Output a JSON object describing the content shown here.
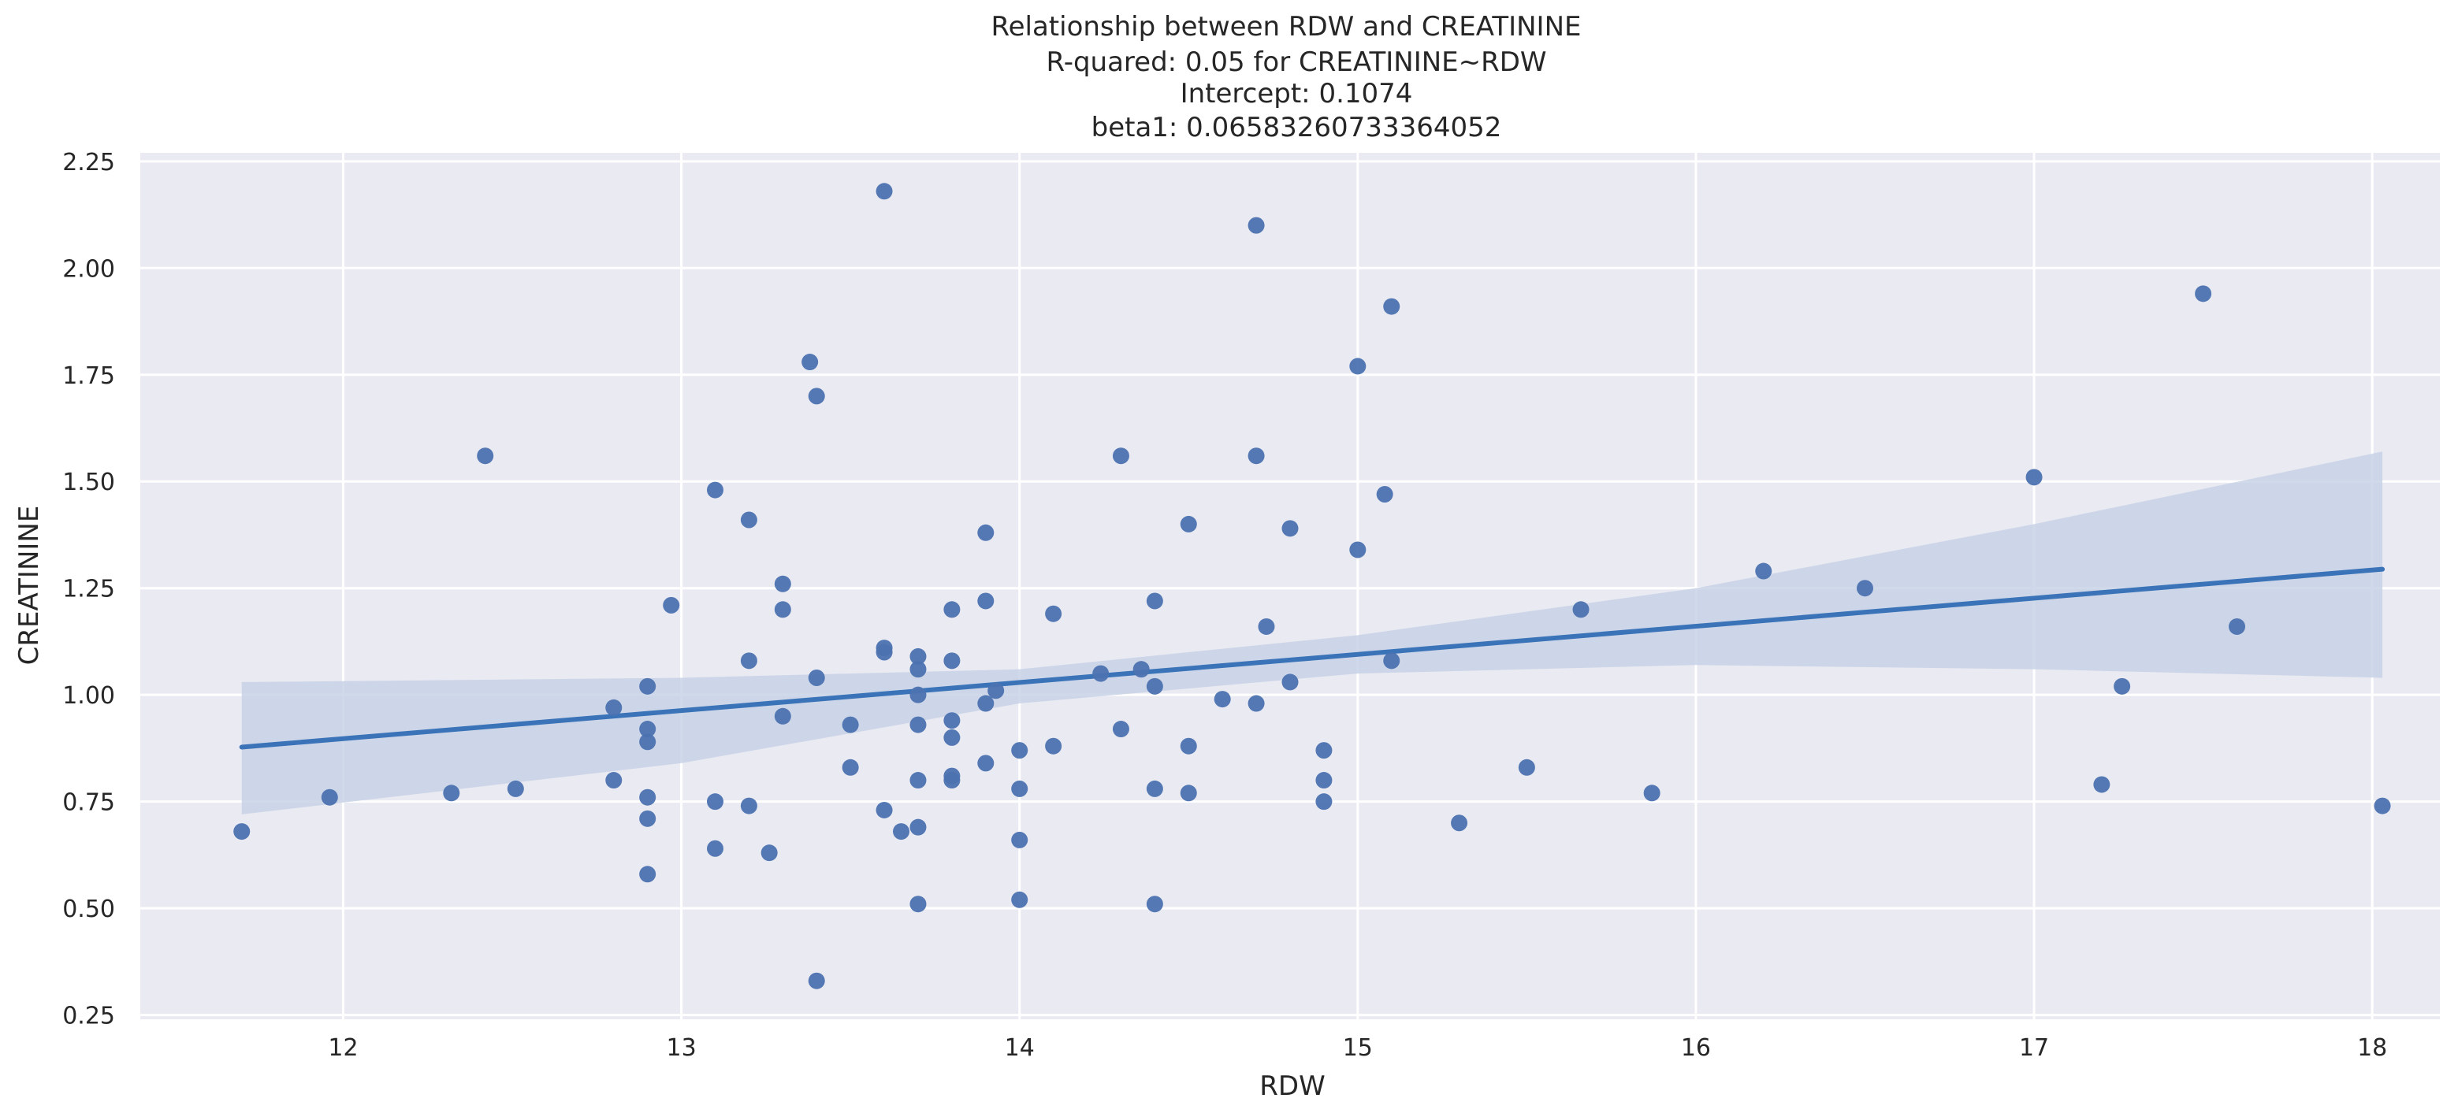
{
  "chart_data": {
    "type": "scatter",
    "title_lines": [
      "Relationship between RDW and CREATININE",
      "R-quared: 0.05 for CREATININE~RDW",
      "Intercept: 0.1074",
      "beta1: 0.06583260733364052"
    ],
    "xlabel": "RDW",
    "ylabel": "CREATININE",
    "xlim": [
      11.4,
      18.2
    ],
    "ylim": [
      0.24,
      2.27
    ],
    "xticks": [
      12,
      13,
      14,
      15,
      16,
      17,
      18
    ],
    "yticks": [
      0.25,
      0.5,
      0.75,
      1.0,
      1.25,
      1.5,
      1.75,
      2.0,
      2.25
    ],
    "grid": true,
    "colors": {
      "background": "#eaeaf2",
      "grid": "#ffffff",
      "point": "#4c72b0",
      "line": "#3a73b8",
      "band": "#c8d2e6"
    },
    "regression": {
      "intercept": 0.1074,
      "slope": 0.06583260733364052,
      "x_range": [
        11.7,
        18.03
      ]
    },
    "confidence_band": {
      "x": [
        11.7,
        13.0,
        14.0,
        15.0,
        16.0,
        17.0,
        18.03
      ],
      "upper": [
        1.03,
        1.04,
        1.06,
        1.14,
        1.25,
        1.4,
        1.57
      ],
      "lower": [
        0.72,
        0.84,
        0.98,
        1.05,
        1.07,
        1.06,
        1.04
      ]
    },
    "points": [
      {
        "x": 11.7,
        "y": 0.68
      },
      {
        "x": 11.96,
        "y": 0.76
      },
      {
        "x": 12.32,
        "y": 0.77
      },
      {
        "x": 12.42,
        "y": 1.56
      },
      {
        "x": 12.51,
        "y": 0.78
      },
      {
        "x": 12.8,
        "y": 0.97
      },
      {
        "x": 12.8,
        "y": 0.8
      },
      {
        "x": 12.9,
        "y": 1.02
      },
      {
        "x": 12.9,
        "y": 0.92
      },
      {
        "x": 12.9,
        "y": 0.89
      },
      {
        "x": 12.9,
        "y": 0.76
      },
      {
        "x": 12.9,
        "y": 0.71
      },
      {
        "x": 12.9,
        "y": 0.58
      },
      {
        "x": 12.97,
        "y": 1.21
      },
      {
        "x": 13.1,
        "y": 1.48
      },
      {
        "x": 13.1,
        "y": 0.75
      },
      {
        "x": 13.1,
        "y": 0.64
      },
      {
        "x": 13.2,
        "y": 1.41
      },
      {
        "x": 13.2,
        "y": 1.08
      },
      {
        "x": 13.2,
        "y": 0.74
      },
      {
        "x": 13.26,
        "y": 0.63
      },
      {
        "x": 13.3,
        "y": 1.26
      },
      {
        "x": 13.3,
        "y": 1.2
      },
      {
        "x": 13.3,
        "y": 0.95
      },
      {
        "x": 13.38,
        "y": 1.78
      },
      {
        "x": 13.4,
        "y": 1.7
      },
      {
        "x": 13.4,
        "y": 1.04
      },
      {
        "x": 13.4,
        "y": 0.33
      },
      {
        "x": 13.5,
        "y": 0.93
      },
      {
        "x": 13.5,
        "y": 0.83
      },
      {
        "x": 13.6,
        "y": 2.18
      },
      {
        "x": 13.6,
        "y": 1.11
      },
      {
        "x": 13.6,
        "y": 1.1
      },
      {
        "x": 13.6,
        "y": 0.73
      },
      {
        "x": 13.65,
        "y": 0.68
      },
      {
        "x": 13.7,
        "y": 1.09
      },
      {
        "x": 13.7,
        "y": 1.06
      },
      {
        "x": 13.7,
        "y": 1.0
      },
      {
        "x": 13.7,
        "y": 0.93
      },
      {
        "x": 13.7,
        "y": 0.8
      },
      {
        "x": 13.7,
        "y": 0.69
      },
      {
        "x": 13.7,
        "y": 0.51
      },
      {
        "x": 13.8,
        "y": 1.2
      },
      {
        "x": 13.8,
        "y": 1.08
      },
      {
        "x": 13.8,
        "y": 0.94
      },
      {
        "x": 13.8,
        "y": 0.9
      },
      {
        "x": 13.8,
        "y": 0.81
      },
      {
        "x": 13.8,
        "y": 0.8
      },
      {
        "x": 13.9,
        "y": 1.38
      },
      {
        "x": 13.9,
        "y": 1.22
      },
      {
        "x": 13.9,
        "y": 0.98
      },
      {
        "x": 13.9,
        "y": 0.84
      },
      {
        "x": 13.93,
        "y": 1.01
      },
      {
        "x": 14.0,
        "y": 0.87
      },
      {
        "x": 14.0,
        "y": 0.78
      },
      {
        "x": 14.0,
        "y": 0.66
      },
      {
        "x": 14.0,
        "y": 0.52
      },
      {
        "x": 14.1,
        "y": 1.19
      },
      {
        "x": 14.1,
        "y": 0.88
      },
      {
        "x": 14.24,
        "y": 1.05
      },
      {
        "x": 14.3,
        "y": 1.56
      },
      {
        "x": 14.3,
        "y": 0.92
      },
      {
        "x": 14.36,
        "y": 1.06
      },
      {
        "x": 14.4,
        "y": 1.22
      },
      {
        "x": 14.4,
        "y": 1.02
      },
      {
        "x": 14.4,
        "y": 0.78
      },
      {
        "x": 14.4,
        "y": 0.51
      },
      {
        "x": 14.5,
        "y": 1.4
      },
      {
        "x": 14.5,
        "y": 0.88
      },
      {
        "x": 14.5,
        "y": 0.77
      },
      {
        "x": 14.6,
        "y": 0.99
      },
      {
        "x": 14.7,
        "y": 2.1
      },
      {
        "x": 14.7,
        "y": 1.56
      },
      {
        "x": 14.7,
        "y": 0.98
      },
      {
        "x": 14.73,
        "y": 1.16
      },
      {
        "x": 14.8,
        "y": 1.39
      },
      {
        "x": 14.8,
        "y": 1.03
      },
      {
        "x": 14.9,
        "y": 0.87
      },
      {
        "x": 14.9,
        "y": 0.8
      },
      {
        "x": 14.9,
        "y": 0.75
      },
      {
        "x": 15.0,
        "y": 1.77
      },
      {
        "x": 15.0,
        "y": 1.34
      },
      {
        "x": 15.08,
        "y": 1.47
      },
      {
        "x": 15.1,
        "y": 1.91
      },
      {
        "x": 15.1,
        "y": 1.08
      },
      {
        "x": 15.3,
        "y": 0.7
      },
      {
        "x": 15.5,
        "y": 0.83
      },
      {
        "x": 15.66,
        "y": 1.2
      },
      {
        "x": 15.87,
        "y": 0.77
      },
      {
        "x": 16.2,
        "y": 1.29
      },
      {
        "x": 16.5,
        "y": 1.25
      },
      {
        "x": 17.0,
        "y": 1.51
      },
      {
        "x": 17.2,
        "y": 0.79
      },
      {
        "x": 17.26,
        "y": 1.02
      },
      {
        "x": 17.5,
        "y": 1.94
      },
      {
        "x": 17.6,
        "y": 1.16
      },
      {
        "x": 18.03,
        "y": 0.74
      }
    ]
  }
}
